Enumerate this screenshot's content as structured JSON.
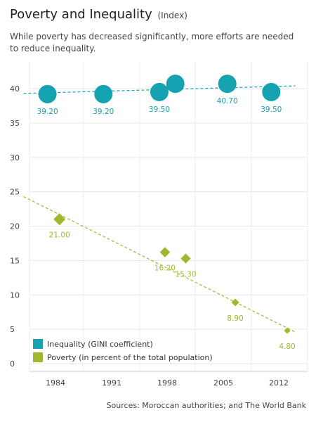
{
  "header": {
    "title": "Poverty and Inequality",
    "title_unit": "(Index)",
    "subtitle": "While poverty has decreased significantly, more efforts are needed to reduce inequality.",
    "source": "Sources: Moroccan authorities; and The World Bank"
  },
  "chart_data": {
    "type": "scatter",
    "x_ticks": [
      "1984",
      "1991",
      "1998",
      "2005",
      "2012"
    ],
    "xlim": [
      1980,
      2014
    ],
    "ylim": [
      0,
      42
    ],
    "y_ticks": [
      0,
      5,
      10,
      15,
      20,
      25,
      30,
      35,
      40
    ],
    "grid": true,
    "legend_position": "bottom-left",
    "series": [
      {
        "name": "Inequality (GINI coefficient)",
        "marker": "circle",
        "color": "#16a3b1",
        "trendline": [
          [
            1980,
            39.3
          ],
          [
            2014,
            40.4
          ]
        ],
        "points": [
          {
            "x": 1983,
            "y": 39.2,
            "label": "39.20"
          },
          {
            "x": 1990,
            "y": 39.2,
            "label": "39.20"
          },
          {
            "x": 1997,
            "y": 39.5,
            "label": "39.50"
          },
          {
            "x": 1999,
            "y": 40.7,
            "label": ""
          },
          {
            "x": 2005.5,
            "y": 40.7,
            "label": "40.70"
          },
          {
            "x": 2011,
            "y": 39.5,
            "label": "39.50"
          }
        ]
      },
      {
        "name": "Poverty (in percent of the total population)",
        "marker": "diamond",
        "color": "#a2b72f",
        "trendline": [
          [
            1980,
            24.3
          ],
          [
            2014,
            4.6
          ]
        ],
        "points": [
          {
            "x": 1984.5,
            "y": 21.0,
            "label": "21.00"
          },
          {
            "x": 1997.7,
            "y": 16.2,
            "label": "16.20"
          },
          {
            "x": 2000.3,
            "y": 15.3,
            "label": "15.30"
          },
          {
            "x": 2006.5,
            "y": 8.9,
            "label": "8.90"
          },
          {
            "x": 2013,
            "y": 4.8,
            "label": "4.80"
          }
        ]
      }
    ]
  }
}
